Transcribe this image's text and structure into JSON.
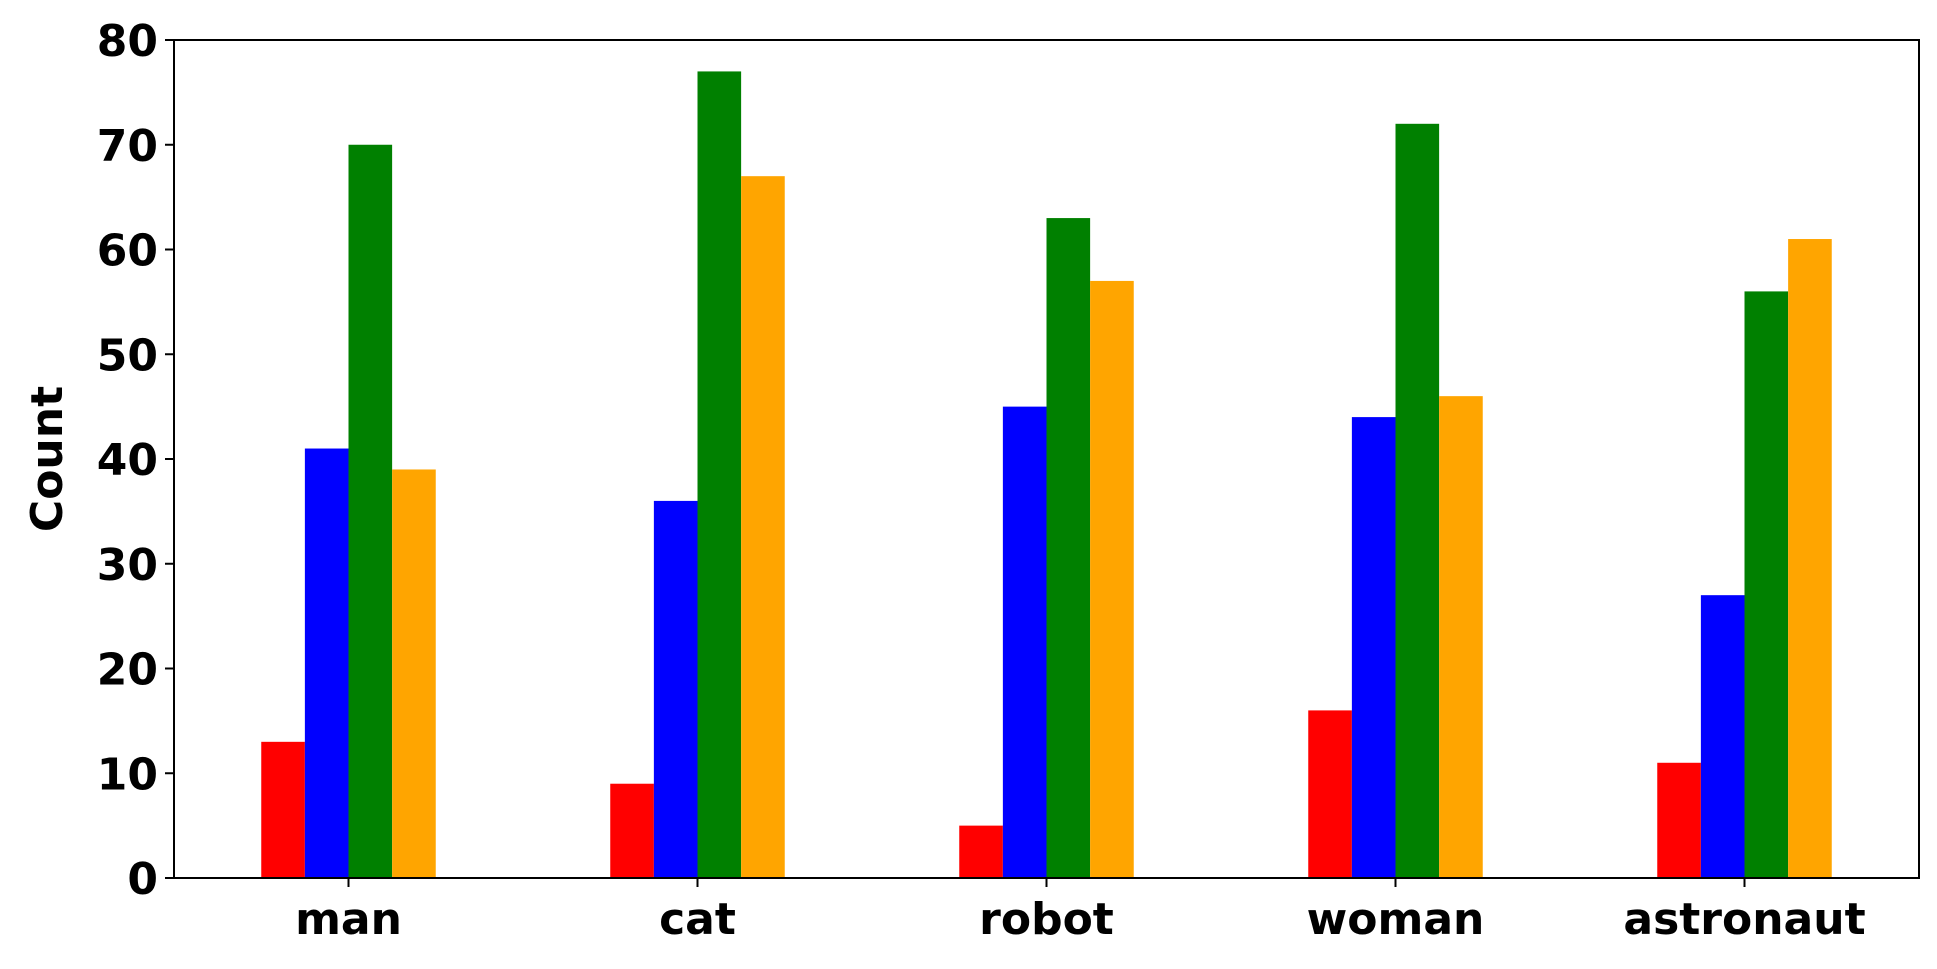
{
  "chart_data": {
    "type": "bar",
    "y_label": "Count",
    "categories": [
      "man",
      "cat",
      "robot",
      "woman",
      "astronaut"
    ],
    "series": [
      {
        "color": "#ff0000",
        "values": [
          13,
          9,
          5,
          16,
          11
        ]
      },
      {
        "color": "#0000ff",
        "values": [
          41,
          36,
          45,
          44,
          27
        ]
      },
      {
        "color": "#008000",
        "values": [
          70,
          77,
          63,
          72,
          56
        ]
      },
      {
        "color": "#ffa500",
        "values": [
          39,
          67,
          57,
          46,
          61
        ]
      }
    ],
    "ylim": [
      0,
      80
    ],
    "yticks": [
      0,
      10,
      20,
      30,
      40,
      50,
      60,
      70,
      80
    ],
    "grid": false
  }
}
